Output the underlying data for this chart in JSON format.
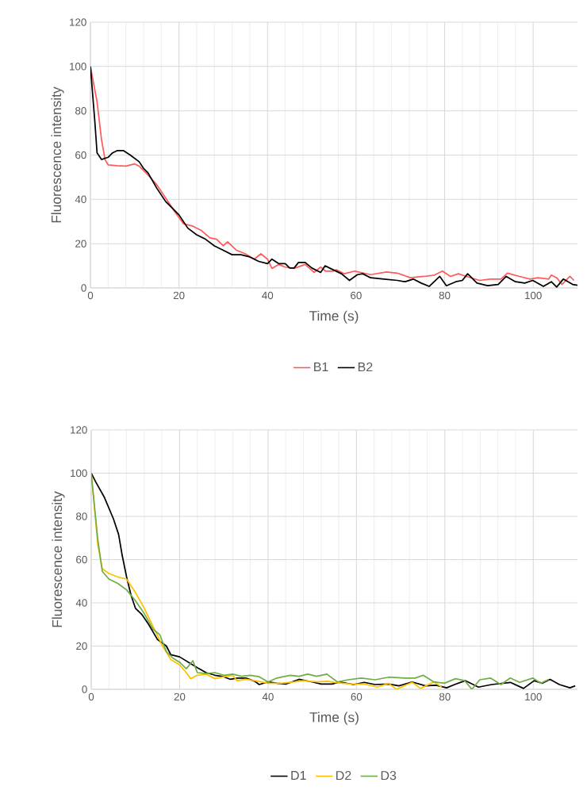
{
  "chart_data": [
    {
      "type": "line",
      "xlabel": "Time (s)",
      "ylabel": "Fluorescence intensity",
      "xlim": [
        0,
        110
      ],
      "ylim": [
        0,
        120
      ],
      "xticks": [
        0,
        20,
        40,
        60,
        80,
        100
      ],
      "yticks": [
        0,
        20,
        40,
        60,
        80,
        100,
        120
      ],
      "grid": true,
      "legend": "bottom",
      "series": [
        {
          "name": "B1",
          "color": "#ff5b5b",
          "x": [
            0,
            1.5,
            2.5,
            3.3,
            4,
            6,
            8,
            10,
            11,
            13,
            15,
            17,
            19,
            21,
            23,
            25,
            27,
            28.5,
            30,
            31,
            33,
            35,
            37,
            38.5,
            40,
            41,
            42.5,
            44,
            46,
            48.5,
            50.5,
            52,
            53.1,
            54.9,
            55.5,
            57.3,
            59.7,
            63.3,
            66.9,
            69.3,
            72.3,
            75.3,
            77.7,
            79.5,
            81.3,
            83.1,
            84.9,
            87.9,
            90.3,
            92.7,
            94.2,
            96.9,
            99.3,
            101.1,
            103.5,
            104.1,
            105.3,
            106.5,
            108.3,
            109.2
          ],
          "values": [
            100,
            84,
            67,
            58,
            55.6,
            55.2,
            55,
            56,
            55,
            51,
            46.6,
            40.6,
            34.6,
            29,
            28,
            26,
            22.6,
            22,
            19,
            20.8,
            17,
            15.4,
            13,
            15.4,
            13,
            8.8,
            10.6,
            9.4,
            8.8,
            10.6,
            7,
            9.4,
            7.6,
            7.6,
            8.2,
            6.4,
            7.6,
            6,
            7.2,
            6.7,
            4.6,
            5.2,
            5.8,
            7.6,
            5.2,
            6.4,
            5.2,
            3.4,
            4,
            4,
            6.7,
            5.2,
            4,
            4.6,
            4,
            5.8,
            4.6,
            1.6,
            5.2,
            3.4
          ]
        },
        {
          "name": "B2",
          "color": "#000000",
          "x": [
            0,
            1,
            1.5,
            2.5,
            4,
            5,
            6,
            7.5,
            9,
            11,
            12,
            13,
            15,
            17,
            18,
            20,
            22,
            24,
            26,
            28,
            30,
            32,
            34,
            36,
            38,
            40,
            41,
            42.5,
            44,
            45,
            46,
            47,
            48.5,
            50,
            52,
            53,
            54,
            56.7,
            58.5,
            60.3,
            61.5,
            63.3,
            66.3,
            69.3,
            71.1,
            72.9,
            74.7,
            76.5,
            78.9,
            80.4,
            82.5,
            84,
            85.2,
            87.3,
            89.7,
            92.1,
            93.9,
            96,
            98.1,
            99.9,
            102.3,
            104.1,
            105.3,
            106.8,
            108.9,
            110
          ],
          "values": [
            100,
            75,
            61,
            58,
            59,
            61,
            62,
            62,
            60,
            57,
            54,
            52,
            45,
            39,
            37,
            33,
            27,
            24,
            22,
            19,
            17,
            15,
            15,
            14,
            12,
            11,
            13,
            11,
            11,
            9,
            9,
            11.5,
            11.5,
            9,
            7,
            10,
            9,
            6.4,
            3.4,
            6,
            6.4,
            4.6,
            4,
            3.4,
            2.8,
            4,
            2.2,
            0.7,
            5.2,
            1,
            2.8,
            3.4,
            6.4,
            2.2,
            1,
            1.6,
            5.2,
            2.8,
            2.2,
            3.4,
            0.7,
            2.8,
            0.4,
            4,
            1.6,
            1.2
          ]
        }
      ]
    },
    {
      "type": "line",
      "xlabel": "Time (s)",
      "ylabel": "Fluorescence intensity",
      "xlim": [
        0,
        110
      ],
      "ylim": [
        0,
        120
      ],
      "xticks": [
        0,
        20,
        40,
        60,
        80,
        100
      ],
      "yticks": [
        0,
        20,
        40,
        60,
        80,
        100,
        120
      ],
      "grid": true,
      "legend": "bottom",
      "series": [
        {
          "name": "D1",
          "color": "#000000",
          "x": [
            0,
            1,
            3,
            5,
            6.2,
            7,
            8,
            9,
            10,
            11.5,
            13,
            15,
            17,
            18,
            20,
            22,
            24,
            26,
            28,
            30,
            31.5,
            33,
            35,
            37,
            38,
            40,
            42,
            44,
            47,
            50,
            52,
            54.5,
            56.3,
            59.3,
            61.8,
            64.2,
            67.3,
            69.6,
            72.6,
            75.6,
            78,
            80.4,
            82.2,
            84.6,
            87.6,
            90.6,
            94.8,
            97.8,
            100.2,
            102,
            103.8,
            105.9,
            108.3,
            109.5
          ],
          "values": [
            100,
            96,
            88.7,
            79,
            71.6,
            62,
            52,
            43.6,
            37.5,
            34.5,
            30,
            23,
            20,
            16,
            15,
            12.5,
            10,
            7.7,
            6.5,
            5.8,
            4.6,
            5.2,
            5.2,
            3.7,
            2.2,
            3.4,
            2.8,
            2.4,
            4.6,
            3.4,
            2.4,
            2.4,
            3.4,
            2.2,
            3.2,
            2.2,
            2.4,
            1.6,
            3.4,
            1.6,
            1.9,
            0.7,
            2.2,
            4,
            1,
            2.2,
            3.2,
            0.4,
            4,
            2.8,
            4.6,
            2.2,
            0.7,
            1.6
          ]
        },
        {
          "name": "D2",
          "color": "#ffc000",
          "x": [
            0,
            1.5,
            2.5,
            4,
            6,
            8,
            10,
            12,
            14,
            16,
            18,
            20,
            21.5,
            22.5,
            24,
            26,
            28,
            30,
            32,
            33,
            35,
            37,
            40,
            43,
            46,
            48,
            51,
            53.5,
            55.1,
            58.7,
            61.8,
            64.8,
            67.3,
            69,
            70.8,
            72.6,
            74.5,
            77.5,
            79.3
          ],
          "values": [
            100,
            66.7,
            55.8,
            53.6,
            52,
            51,
            44.8,
            37.5,
            29,
            20.5,
            13.8,
            11.3,
            7.7,
            4.9,
            6.5,
            7,
            4.9,
            5.8,
            6.5,
            4,
            4.6,
            4,
            2.8,
            2.8,
            3.4,
            4,
            3.4,
            3.7,
            3.2,
            2.4,
            2.4,
            1,
            2.8,
            0,
            1.6,
            3.2,
            0.4,
            3.4,
            1
          ]
        },
        {
          "name": "D3",
          "color": "#70ad47",
          "x": [
            0,
            1.5,
            2.5,
            4,
            6,
            8,
            10,
            12,
            14,
            15.5,
            17,
            18.5,
            20,
            21.5,
            23,
            24,
            26,
            28,
            30,
            32,
            34,
            36,
            38,
            40,
            42,
            45,
            47,
            49,
            51,
            53.3,
            55.7,
            58.1,
            61.1,
            64.2,
            67.3,
            70.9,
            73.3,
            75.1,
            77.5,
            79.9,
            82.4,
            84.5,
            86.1,
            87.9,
            90.3,
            92.7,
            94.8,
            96.9,
            99.9,
            101.7,
            103.5
          ],
          "values": [
            100,
            69,
            54.6,
            51,
            49,
            46,
            41,
            35,
            27.8,
            25.3,
            17.4,
            14.4,
            12.5,
            9.5,
            13.2,
            7.7,
            7.3,
            7.7,
            6.5,
            7,
            6,
            6.5,
            5.8,
            3.4,
            5.2,
            6.5,
            6,
            7,
            6,
            7,
            3.4,
            4.4,
            5.2,
            4.4,
            5.6,
            5.2,
            5.2,
            6.5,
            3.4,
            2.8,
            4.9,
            4,
            0,
            4.4,
            5.2,
            2.2,
            5.2,
            3.2,
            5.2,
            2.8,
            4.6
          ]
        }
      ]
    }
  ]
}
